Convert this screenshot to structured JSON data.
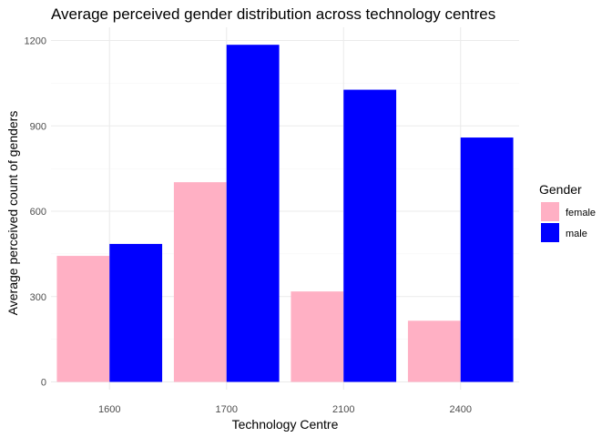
{
  "chart_data": {
    "type": "bar",
    "title": "Average perceived gender distribution across technology centres",
    "xlabel": "Technology Centre",
    "ylabel": "Average perceived count of genders",
    "categories": [
      "1600",
      "1700",
      "2100",
      "2400"
    ],
    "series": [
      {
        "name": "female",
        "color": "#FFB0C4",
        "values": [
          443,
          702,
          318,
          215
        ]
      },
      {
        "name": "male",
        "color": "#0000FF",
        "values": [
          485,
          1185,
          1027,
          859
        ]
      }
    ],
    "ylim": [
      0,
      1260
    ],
    "yticks": [
      0,
      300,
      600,
      900,
      1200
    ],
    "yticks_labels": [
      "0",
      "300",
      "600",
      "900",
      "1200"
    ],
    "grid": true,
    "legend": {
      "title": "Gender",
      "position": "right"
    }
  }
}
